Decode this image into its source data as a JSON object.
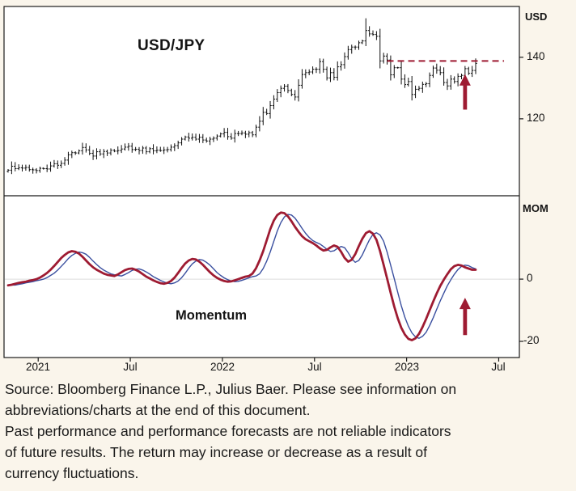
{
  "page": {
    "background": "#faf5eb"
  },
  "chart": {
    "title": "USD/JPY",
    "momentum_label": "Momentum",
    "right_axis": {
      "price_unit_label": "USD",
      "momentum_unit_label": "MOM",
      "price_ticks": [
        {
          "label": "140",
          "value": 140
        },
        {
          "label": "120",
          "value": 120
        }
      ],
      "momentum_ticks": [
        {
          "label": "0",
          "value": 0
        },
        {
          "label": "-20",
          "value": -20
        }
      ]
    },
    "x_axis": {
      "ticks": [
        {
          "label": "2021",
          "week_index": 8.5
        },
        {
          "label": "Jul",
          "week_index": 34.5
        },
        {
          "label": "2022",
          "week_index": 60.5
        },
        {
          "label": "Jul",
          "week_index": 86.5
        },
        {
          "label": "2023",
          "week_index": 112.5
        },
        {
          "label": "Jul",
          "week_index": 138.5
        }
      ]
    },
    "colors": {
      "bars": "#0e0e0e",
      "accent_red": "#9e1b32",
      "signal_blue": "#3a4f9f",
      "zero_line": "#dcdcdc"
    }
  },
  "chart_data": [
    {
      "type": "ohlc",
      "title": "USD/JPY",
      "frequency": "weekly",
      "x_range": "Nov 2020 - May 2023",
      "ylabel": "USD",
      "ylim": [
        95,
        156.5
      ],
      "yticks": [
        140,
        120
      ],
      "grid": false,
      "close": [
        103.3,
        104.6,
        103.8,
        104.1,
        104.0,
        104.2,
        103.5,
        103.4,
        103.2,
        103.9,
        103.8,
        103.7,
        104.7,
        105.4,
        104.9,
        105.5,
        106.6,
        108.3,
        109.0,
        108.9,
        109.6,
        110.7,
        109.9,
        108.8,
        107.9,
        109.3,
        108.6,
        109.4,
        108.9,
        109.8,
        109.5,
        109.7,
        110.2,
        110.8,
        111.1,
        110.0,
        110.1,
        109.7,
        110.5,
        109.3,
        110.3,
        109.6,
        109.8,
        109.7,
        109.9,
        110.0,
        110.8,
        111.3,
        112.2,
        113.4,
        114.1,
        113.7,
        114.0,
        113.4,
        114.0,
        113.1,
        112.8,
        113.4,
        113.7,
        114.4,
        115.1,
        115.6,
        114.2,
        113.7,
        115.2,
        115.2,
        115.4,
        115.0,
        115.5,
        114.8,
        117.3,
        119.2,
        122.1,
        121.7,
        124.3,
        126.4,
        128.5,
        129.9,
        130.6,
        129.2,
        127.9,
        127.1,
        130.9,
        134.4,
        135.0,
        135.2,
        136.1,
        136.1,
        138.6,
        136.1,
        133.3,
        135.0,
        133.5,
        136.9,
        137.6,
        140.2,
        142.5,
        143.3,
        143.3,
        144.7,
        145.3,
        148.7,
        147.6,
        147.4,
        146.8,
        138.8,
        140.4,
        139.1,
        134.3,
        136.6,
        136.6,
        132.9,
        131.1,
        132.1,
        127.9,
        129.6,
        129.9,
        131.2,
        131.4,
        134.1,
        136.5,
        135.8,
        135.0,
        131.8,
        130.7,
        132.9,
        132.1,
        133.8,
        134.1,
        136.3,
        134.8,
        135.7,
        138.0
      ],
      "resistance_line": {
        "value": 138.8,
        "from_week": 107,
        "to_week": 140,
        "style": "dashed",
        "color": "#9e1b32"
      },
      "arrow": {
        "direction": "up",
        "week_index": 129,
        "from_value": 123,
        "to_value": 134.5,
        "color": "#9e1b32"
      }
    },
    {
      "type": "line",
      "title": "Momentum",
      "ylabel": "MOM",
      "ylim": [
        -25.2,
        26.8
      ],
      "yticks": [
        0,
        -20
      ],
      "grid": false,
      "series": [
        {
          "name": "momentum",
          "color": "#9e1b32",
          "width": 2.8,
          "values": [
            -2.0,
            -1.8,
            -1.5,
            -1.2,
            -1.0,
            -0.8,
            -0.5,
            -0.3,
            0.0,
            0.5,
            1.2,
            2.0,
            3.0,
            4.2,
            5.5,
            6.8,
            7.8,
            8.6,
            9.0,
            8.8,
            8.2,
            7.2,
            6.0,
            4.8,
            3.8,
            3.0,
            2.4,
            1.8,
            1.4,
            1.2,
            1.0,
            1.5,
            2.2,
            2.9,
            3.3,
            3.4,
            3.0,
            2.4,
            1.6,
            0.8,
            0.2,
            -0.4,
            -0.9,
            -1.3,
            -1.5,
            -1.2,
            -0.6,
            0.5,
            2.0,
            3.6,
            5.0,
            6.0,
            6.5,
            6.3,
            5.6,
            4.6,
            3.4,
            2.2,
            1.2,
            0.4,
            -0.2,
            -0.6,
            -0.8,
            -0.7,
            -0.4,
            0.0,
            0.4,
            0.8,
            1.0,
            1.8,
            3.5,
            6.0,
            9.0,
            12.5,
            16.0,
            18.8,
            20.6,
            21.4,
            21.2,
            20.2,
            18.6,
            16.8,
            15.2,
            13.8,
            12.8,
            12.2,
            11.6,
            10.8,
            9.9,
            9.2,
            9.4,
            10.2,
            10.8,
            10.4,
            8.8,
            6.8,
            5.6,
            6.2,
            8.0,
            10.6,
            13.0,
            14.8,
            15.4,
            14.6,
            12.6,
            9.0,
            4.6,
            0.2,
            -4.4,
            -8.8,
            -12.6,
            -15.6,
            -17.8,
            -19.2,
            -19.6,
            -19.0,
            -17.6,
            -15.4,
            -12.8,
            -10.0,
            -7.2,
            -4.6,
            -2.2,
            -0.2,
            1.6,
            3.2,
            4.2,
            4.6,
            4.4,
            3.8,
            3.4,
            3.0,
            3.0
          ]
        },
        {
          "name": "momentum signal",
          "color": "#3a4f9f",
          "width": 1.4,
          "values": [
            -1.9,
            -1.9,
            -1.9,
            -1.7,
            -1.5,
            -1.2,
            -1.0,
            -0.8,
            -0.5,
            -0.3,
            0.0,
            0.5,
            1.2,
            1.9,
            2.9,
            4.1,
            5.3,
            6.6,
            7.6,
            8.3,
            8.7,
            8.5,
            8.0,
            7.0,
            5.8,
            4.7,
            3.7,
            2.9,
            2.3,
            1.7,
            1.4,
            1.2,
            1.0,
            1.5,
            2.1,
            2.8,
            3.2,
            3.3,
            2.9,
            2.3,
            1.6,
            0.8,
            0.2,
            -0.4,
            -0.9,
            -1.3,
            -1.5,
            -1.2,
            -0.6,
            0.5,
            1.9,
            3.5,
            4.9,
            5.8,
            6.3,
            6.1,
            5.4,
            4.5,
            3.3,
            2.1,
            1.2,
            0.4,
            -0.2,
            -0.6,
            -0.8,
            -0.7,
            -0.4,
            0.0,
            0.4,
            0.8,
            1.0,
            1.7,
            3.4,
            5.8,
            8.7,
            12.1,
            15.5,
            18.2,
            20.0,
            20.8,
            20.6,
            19.6,
            18.0,
            16.3,
            14.7,
            13.4,
            12.4,
            11.8,
            11.3,
            10.5,
            9.6,
            8.9,
            9.1,
            9.9,
            10.5,
            10.1,
            8.5,
            6.6,
            5.4,
            6.0,
            7.8,
            10.3,
            12.6,
            14.4,
            14.9,
            14.2,
            12.2,
            8.7,
            4.5,
            0.2,
            -4.3,
            -8.5,
            -12.2,
            -15.1,
            -17.3,
            -18.6,
            -19.0,
            -18.4,
            -17.1,
            -14.9,
            -12.4,
            -9.7,
            -7.0,
            -4.5,
            -2.1,
            -0.2,
            1.6,
            3.1,
            4.1,
            4.5,
            4.3,
            3.7,
            3.3
          ]
        }
      ],
      "arrow": {
        "direction": "up",
        "week_index": 129,
        "from_value": -18,
        "to_value": -6,
        "color": "#9e1b32"
      }
    }
  ],
  "footer": {
    "lines": [
      "Source: Bloomberg Finance L.P., Julius Baer. Please see information on",
      "abbreviations/charts at the end of this document.",
      "Past performance and performance forecasts are not reliable indicators",
      "of future results. The return may increase or decrease as a result of",
      "currency fluctuations."
    ]
  }
}
